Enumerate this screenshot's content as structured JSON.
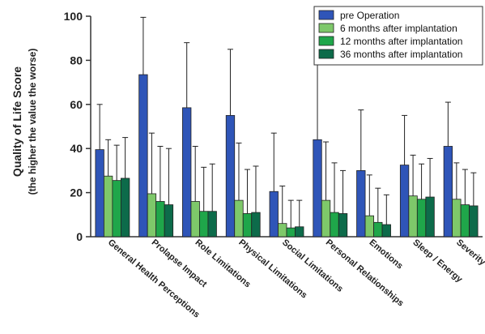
{
  "chart_data": {
    "type": "bar",
    "ylabel": "Quality of Life Score",
    "ylabel_sub": "(the higher the value the worse)",
    "ylim": [
      0,
      100
    ],
    "yticks": [
      "0",
      "20",
      "40",
      "60",
      "80",
      "100"
    ],
    "grid": false,
    "legend_position": "top-right",
    "categories": [
      "General Health Perceptions",
      "Prolapse Impact",
      "Role Limitations",
      "Physical Limitations",
      "Social Limitations",
      "Personal Relationships",
      "Emotions",
      "Sleep / Energy",
      "Severity Measures"
    ],
    "series": [
      {
        "name": "pre Operation",
        "color": "#2f55b8",
        "values": [
          39.5,
          73.5,
          58.5,
          55,
          20.5,
          44,
          30,
          32.5,
          41
        ],
        "error_upper": [
          60,
          99.5,
          88,
          85,
          47,
          81,
          57.5,
          55,
          61
        ]
      },
      {
        "name": "6 months after implantation",
        "color": "#7ec86a",
        "values": [
          27.5,
          19.5,
          16,
          16.5,
          6,
          16.5,
          9.5,
          18.5,
          17
        ],
        "error_upper": [
          44,
          47,
          41,
          42.5,
          23,
          43,
          28,
          37,
          33.5
        ]
      },
      {
        "name": "12 months after implantation",
        "color": "#1fa64a",
        "values": [
          25.5,
          16,
          11.5,
          10.5,
          4,
          11,
          6.5,
          17,
          14.5
        ],
        "error_upper": [
          41.5,
          41,
          31.5,
          30.5,
          16.5,
          33.5,
          22,
          33,
          30.5
        ]
      },
      {
        "name": "36 months after implantation",
        "color": "#0d6b4a",
        "values": [
          26.5,
          14.5,
          11.5,
          11,
          4.5,
          10.5,
          5.5,
          18,
          14
        ],
        "error_upper": [
          45,
          40,
          33,
          32,
          16.5,
          30,
          19,
          35.5,
          29
        ]
      }
    ]
  }
}
